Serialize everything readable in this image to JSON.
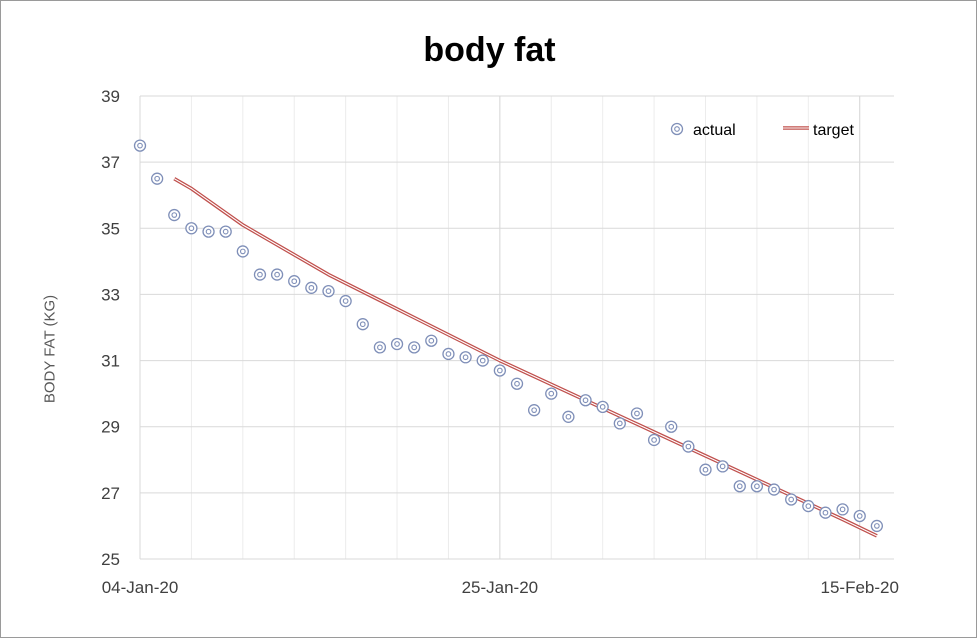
{
  "chart_data": {
    "type": "scatter",
    "title": "body fat",
    "xlabel": "",
    "ylabel": "BODY FAT (KG)",
    "x_ticks": [
      "04-Jan-20",
      "25-Jan-20",
      "15-Feb-20"
    ],
    "y_ticks": [
      25,
      27,
      29,
      31,
      33,
      35,
      37,
      39
    ],
    "ylim": [
      25,
      39
    ],
    "xlim": [
      "2020-01-04",
      "2020-02-17"
    ],
    "grid": true,
    "legend_position": "top-right",
    "series": [
      {
        "name": "actual",
        "kind": "scatter",
        "color": "#7f8fb8",
        "x": [
          "2020-01-04",
          "2020-01-05",
          "2020-01-06",
          "2020-01-07",
          "2020-01-08",
          "2020-01-09",
          "2020-01-10",
          "2020-01-11",
          "2020-01-12",
          "2020-01-13",
          "2020-01-14",
          "2020-01-15",
          "2020-01-16",
          "2020-01-17",
          "2020-01-18",
          "2020-01-19",
          "2020-01-20",
          "2020-01-21",
          "2020-01-22",
          "2020-01-23",
          "2020-01-24",
          "2020-01-25",
          "2020-01-26",
          "2020-01-27",
          "2020-01-28",
          "2020-01-29",
          "2020-01-30",
          "2020-01-31",
          "2020-02-01",
          "2020-02-02",
          "2020-02-03",
          "2020-02-04",
          "2020-02-05",
          "2020-02-06",
          "2020-02-07",
          "2020-02-08",
          "2020-02-09",
          "2020-02-10",
          "2020-02-11",
          "2020-02-12",
          "2020-02-13",
          "2020-02-14",
          "2020-02-15",
          "2020-02-16"
        ],
        "y": [
          37.5,
          36.5,
          35.4,
          35.0,
          34.9,
          34.9,
          34.3,
          33.6,
          33.6,
          33.4,
          33.2,
          33.1,
          32.8,
          32.1,
          31.4,
          31.5,
          31.4,
          31.6,
          31.2,
          31.1,
          31.0,
          30.7,
          30.3,
          29.5,
          30.0,
          29.3,
          29.8,
          29.6,
          29.1,
          29.4,
          28.6,
          29.0,
          28.4,
          27.7,
          27.8,
          27.2,
          27.2,
          27.1,
          26.8,
          26.6,
          26.4,
          26.5,
          26.3,
          26.0
        ]
      },
      {
        "name": "target",
        "kind": "line",
        "color": "#c0504d",
        "x": [
          "2020-01-06",
          "2020-01-07",
          "2020-01-10",
          "2020-01-15",
          "2020-01-20",
          "2020-01-25",
          "2020-01-30",
          "2020-02-04",
          "2020-02-09",
          "2020-02-14",
          "2020-02-16"
        ],
        "y": [
          36.5,
          36.2,
          35.1,
          33.6,
          32.3,
          31.0,
          29.8,
          28.6,
          27.4,
          26.2,
          25.7
        ]
      }
    ]
  }
}
